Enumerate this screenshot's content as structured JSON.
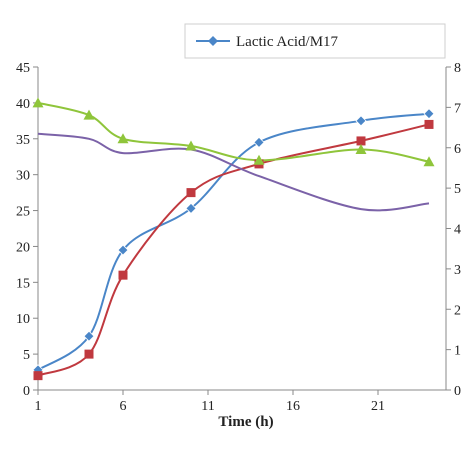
{
  "chart_data": {
    "type": "line",
    "title": "",
    "xlabel": "Time (h)",
    "ylabel": "",
    "y2label": "",
    "xlim": [
      1,
      25
    ],
    "ylim": [
      0,
      45
    ],
    "y2lim": [
      0,
      8
    ],
    "xticks": [
      1,
      6,
      11,
      16,
      21
    ],
    "yticks": [
      0,
      5,
      10,
      15,
      20,
      25,
      30,
      35,
      40,
      45
    ],
    "y2ticks": [
      0,
      1,
      2,
      3,
      4,
      5,
      6,
      7,
      8
    ],
    "legend_position": "top-center",
    "series": [
      {
        "name": "Lactic Acid/M17",
        "color": "#4a86c8",
        "marker": "diamond",
        "axis": "left",
        "x": [
          1,
          4,
          6,
          10,
          14,
          20,
          24
        ],
        "y": [
          2.8,
          7.5,
          19.5,
          25.3,
          34.5,
          37.5,
          38.5
        ]
      },
      {
        "name": "",
        "color": "#c0393f",
        "marker": "square",
        "axis": "left",
        "x": [
          1,
          4,
          6,
          10,
          14,
          20,
          24
        ],
        "y": [
          2.0,
          5.0,
          16.0,
          27.5,
          31.5,
          34.7,
          37.0
        ]
      },
      {
        "name": "",
        "color": "#8fc53b",
        "marker": "triangle",
        "axis": "left",
        "x": [
          1,
          4,
          6,
          10,
          14,
          20,
          24
        ],
        "y": [
          40.0,
          38.3,
          35.0,
          34.0,
          32.0,
          33.5,
          31.8
        ]
      },
      {
        "name": "",
        "color": "#7b62a8",
        "marker": "none",
        "axis": "left",
        "x": [
          1,
          4,
          6,
          10,
          14,
          20,
          24
        ],
        "y": [
          35.7,
          35.0,
          33.0,
          33.5,
          29.8,
          25.2,
          26.0
        ]
      }
    ]
  }
}
